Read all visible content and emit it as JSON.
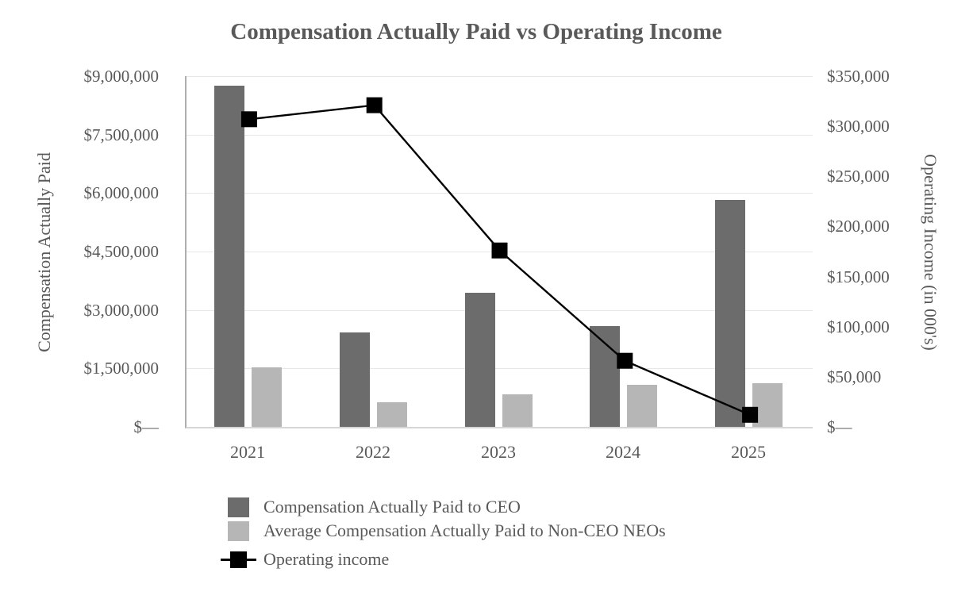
{
  "title": "Compensation Actually Paid vs Operating Income",
  "chart_data": {
    "type": "bar",
    "subtype": "combo-bar-line-dual-axis",
    "categories": [
      "2021",
      "2022",
      "2023",
      "2024",
      "2025"
    ],
    "series": [
      {
        "name": "Compensation Actually Paid to CEO",
        "type": "bar",
        "axis": "left",
        "color": "#6c6c6c",
        "values": [
          8750000,
          2430000,
          3440000,
          2590000,
          5820000
        ]
      },
      {
        "name": "Average Compensation Actually Paid to Non-CEO NEOs",
        "type": "bar",
        "axis": "left",
        "color": "#b6b6b6",
        "values": [
          1530000,
          630000,
          845000,
          1085000,
          1110000
        ]
      },
      {
        "name": "Operating income",
        "type": "line",
        "axis": "right",
        "color": "#000000",
        "marker": "square",
        "values": [
          307000,
          321000,
          176000,
          66000,
          12000
        ]
      }
    ],
    "left_axis": {
      "title": "Compensation Actually Paid",
      "min": 0,
      "max": 9000000,
      "tick_labels": [
        "$9,000,000",
        "$7,500,000",
        "$6,000,000",
        "$4,500,000",
        "$3,000,000",
        "$1,500,000",
        "$—"
      ]
    },
    "right_axis": {
      "title": "Operating Income (in 000's)",
      "min": 0,
      "max": 350000,
      "tick_labels": [
        "$350,000",
        "$300,000",
        "$250,000",
        "$200,000",
        "$150,000",
        "$100,000",
        "$50,000",
        "$—"
      ]
    },
    "grid": "horizontal",
    "legend_position": "bottom-left",
    "text_color": "#595959",
    "gridline_color": "#e8e8e8",
    "background_color": "#ffffff"
  }
}
